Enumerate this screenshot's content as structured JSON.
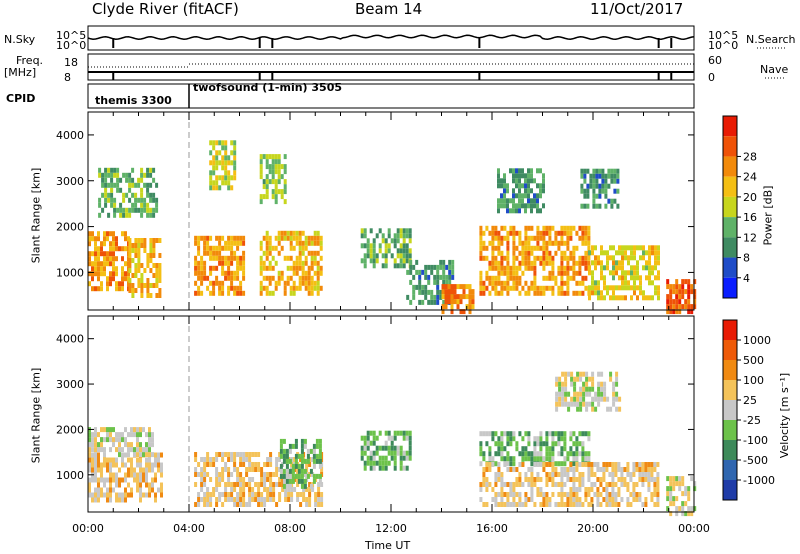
{
  "header": {
    "station": "Clyde River (fitACF)",
    "beam": "Beam 14",
    "date": "11/Oct/2017"
  },
  "top_panels": {
    "nsky_label": "N.Sky",
    "nsky_ticks": [
      "10^5",
      "10^0"
    ],
    "nsearch_label": "N.Search",
    "nsearch_ticks": [
      "10^5",
      "10^0"
    ],
    "freq_label": "Freq.",
    "freq_unit": "[MHz]",
    "freq_ticks": [
      "18",
      "8"
    ],
    "nave_label": "Nave",
    "nave_ticks": [
      "60",
      "0"
    ],
    "cpid_label": "CPID",
    "cpid_modes": [
      {
        "name": "themis 3300",
        "start_hour": 0
      },
      {
        "name": "twofsound (1-min) 3505",
        "start_hour": 4
      }
    ]
  },
  "chart_data": [
    {
      "type": "heatmap",
      "title": "",
      "xlabel": "",
      "ylabel": "Slant Range [km]",
      "xlim": [
        0,
        24
      ],
      "ylim": [
        180,
        4500
      ],
      "yticks": [
        1000,
        2000,
        3000,
        4000
      ],
      "colorbar": {
        "label": "Power [dB]",
        "ticks": [
          "4",
          "8",
          "12",
          "16",
          "20",
          "24",
          "28"
        ],
        "range": [
          0,
          32
        ],
        "colors": [
          "#0a1eff",
          "#1f4cc8",
          "#3f8b62",
          "#5fb268",
          "#c7d61e",
          "#f4bf14",
          "#f28a0a",
          "#ef5207",
          "#e81b04"
        ]
      },
      "echo_regions": [
        {
          "t0": 0.0,
          "t1": 1.6,
          "r0": 700,
          "r1": 1900,
          "level": 22
        },
        {
          "t0": 1.6,
          "t1": 2.9,
          "r0": 550,
          "r1": 1800,
          "level": 20
        },
        {
          "t0": 0.4,
          "t1": 2.7,
          "r0": 2300,
          "r1": 3300,
          "level": 12
        },
        {
          "t0": 4.2,
          "t1": 6.2,
          "r0": 600,
          "r1": 1800,
          "level": 22
        },
        {
          "t0": 4.8,
          "t1": 5.8,
          "r0": 2900,
          "r1": 3900,
          "level": 16
        },
        {
          "t0": 6.8,
          "t1": 9.2,
          "r0": 600,
          "r1": 2000,
          "level": 20
        },
        {
          "t0": 6.8,
          "t1": 7.8,
          "r0": 2600,
          "r1": 3600,
          "level": 14
        },
        {
          "t0": 10.8,
          "t1": 12.8,
          "r0": 1200,
          "r1": 2000,
          "level": 12
        },
        {
          "t0": 12.6,
          "t1": 14.4,
          "r0": 400,
          "r1": 1300,
          "level": 10
        },
        {
          "t0": 14.0,
          "t1": 15.2,
          "r0": 200,
          "r1": 800,
          "level": 24
        },
        {
          "t0": 15.5,
          "t1": 19.8,
          "r0": 600,
          "r1": 2100,
          "level": 22
        },
        {
          "t0": 16.2,
          "t1": 18.0,
          "r0": 2400,
          "r1": 3300,
          "level": 10
        },
        {
          "t0": 19.5,
          "t1": 21.0,
          "r0": 2500,
          "r1": 3300,
          "level": 10
        },
        {
          "t0": 19.8,
          "t1": 22.6,
          "r0": 500,
          "r1": 1600,
          "level": 18
        },
        {
          "t0": 22.9,
          "t1": 24.0,
          "r0": 200,
          "r1": 900,
          "level": 26
        }
      ]
    },
    {
      "type": "heatmap",
      "title": "",
      "xlabel": "Time UT",
      "ylabel": "Slant Range [km]",
      "xlim": [
        0,
        24
      ],
      "ylim": [
        180,
        4500
      ],
      "xticks": [
        "00:00",
        "04:00",
        "08:00",
        "12:00",
        "16:00",
        "20:00",
        "00:00"
      ],
      "yticks": [
        1000,
        2000,
        3000,
        4000
      ],
      "colorbar": {
        "label": "Velocity [m s⁻¹]",
        "ticks": [
          "1000",
          "500",
          "100",
          "25",
          "-25",
          "-100",
          "-500",
          "-1000"
        ],
        "range": [
          -1200,
          1200
        ],
        "colors": [
          "#1f3ca8",
          "#2f66b0",
          "#3d8a5a",
          "#6cc24a",
          "#c8c8c8",
          "#f4c35a",
          "#f08a12",
          "#ee5a08",
          "#e81b04"
        ]
      },
      "echo_regions": [
        {
          "t0": 0.0,
          "t1": 2.9,
          "r0": 500,
          "r1": 1500,
          "level": 200
        },
        {
          "t0": 0.0,
          "t1": 2.5,
          "r0": 1500,
          "r1": 2100,
          "level": 0
        },
        {
          "t0": 4.2,
          "t1": 9.2,
          "r0": 400,
          "r1": 1600,
          "level": 200
        },
        {
          "t0": 7.6,
          "t1": 9.2,
          "r0": 800,
          "r1": 1900,
          "level": -300
        },
        {
          "t0": 10.8,
          "t1": 12.8,
          "r0": 1200,
          "r1": 2000,
          "level": -300
        },
        {
          "t0": 15.5,
          "t1": 19.8,
          "r0": 1300,
          "r1": 2000,
          "level": -300
        },
        {
          "t0": 15.5,
          "t1": 22.6,
          "r0": 400,
          "r1": 1300,
          "level": 200
        },
        {
          "t0": 18.5,
          "t1": 21.0,
          "r0": 2500,
          "r1": 3300,
          "level": 0
        },
        {
          "t0": 22.9,
          "t1": 24.0,
          "r0": 200,
          "r1": 1000,
          "level": 0
        }
      ]
    }
  ]
}
